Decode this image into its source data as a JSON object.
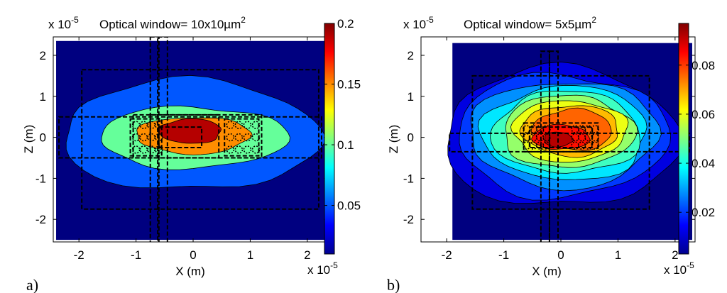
{
  "chart_data": [
    {
      "type": "contour",
      "title": "Optical window= 10x10µm",
      "title_superscript": "2",
      "axis_multiplier": "x 10",
      "axis_multiplier_exp": "-5",
      "xlabel": "X (m)",
      "ylabel": "Z (m)",
      "xlim": [
        -2.45,
        2.35
      ],
      "ylim": [
        -2.55,
        2.45
      ],
      "xticks": [
        -2,
        -1,
        0,
        1,
        2
      ],
      "yticks": [
        -2,
        -1,
        0,
        1,
        2
      ],
      "xtick_labels": [
        "-2",
        "-1",
        "0",
        "1",
        "2"
      ],
      "ytick_labels": [
        "-2",
        "-1",
        "0",
        "1",
        "2"
      ],
      "colorbar": {
        "min": 0.01,
        "max": 0.2,
        "ticks": [
          0.05,
          0.1,
          0.15,
          0.2
        ],
        "tick_labels": [
          "0.05",
          "0.1",
          "0.15",
          "0.2"
        ]
      },
      "panel_label": "a)",
      "fill_region": [
        -2.4,
        2.3,
        -2.5,
        2.35
      ],
      "contours": [
        {
          "level": 0.05,
          "cx": -0.05,
          "cz": 0.05,
          "rx": 2.25,
          "rz": 1.35
        },
        {
          "level": 0.1,
          "cx": 0.0,
          "cz": 0.0,
          "rx": 1.65,
          "rz": 0.75
        },
        {
          "level": 0.15,
          "cx": 0.0,
          "cz": 0.05,
          "rx": 1.0,
          "rz": 0.45
        },
        {
          "level": 0.19,
          "cx": -0.05,
          "cz": 0.15,
          "rx": 0.55,
          "rz": 0.3
        }
      ],
      "dashed_rects": [
        [
          -1.95,
          2.2,
          -1.75,
          1.65
        ],
        [
          -2.35,
          2.25,
          -0.5,
          0.5
        ],
        [
          -0.62,
          -0.45,
          -2.6,
          2.45
        ],
        [
          -0.75,
          -0.6,
          -2.6,
          2.45
        ],
        [
          -1.05,
          1.2,
          -0.5,
          0.55
        ],
        [
          -0.75,
          0.45,
          -0.5,
          0.55
        ],
        [
          -1.1,
          -0.55,
          -0.45,
          0.45
        ],
        [
          0.55,
          1.15,
          -0.45,
          0.45
        ],
        [
          -0.6,
          0.15,
          -0.25,
          0.25
        ]
      ],
      "dot_rows": [
        {
          "x0": -1.0,
          "x1": -0.6,
          "z": 0.3
        },
        {
          "x0": -1.0,
          "x1": -0.6,
          "z": 0.0
        },
        {
          "x0": -1.0,
          "x1": -0.6,
          "z": -0.3
        },
        {
          "x0": 0.65,
          "x1": 1.1,
          "z": 0.3
        },
        {
          "x0": 0.65,
          "x1": 1.1,
          "z": 0.0
        },
        {
          "x0": 0.65,
          "x1": 1.1,
          "z": -0.3
        }
      ]
    },
    {
      "type": "contour",
      "title": "Optical window= 5x5µm",
      "title_superscript": "2",
      "axis_multiplier": "x 10",
      "axis_multiplier_exp": "-5",
      "xlabel": "X (m)",
      "ylabel": "Z (m)",
      "xlim": [
        -2.45,
        2.35
      ],
      "ylim": [
        -2.55,
        2.45
      ],
      "xticks": [
        -2,
        -1,
        0,
        1,
        2
      ],
      "yticks": [
        -2,
        -1,
        0,
        1,
        2
      ],
      "xtick_labels": [
        "-2",
        "-1",
        "0",
        "1",
        "2"
      ],
      "ytick_labels": [
        "-2",
        "-1",
        "0",
        "1",
        "2"
      ],
      "colorbar": {
        "min": 0.003,
        "max": 0.097,
        "ticks": [
          0.02,
          0.04,
          0.06,
          0.08
        ],
        "tick_labels": [
          "0.02",
          "0.04",
          "0.06",
          "0.08"
        ]
      },
      "panel_label": "b)",
      "fill_region": [
        -1.9,
        2.3,
        -2.5,
        2.3
      ],
      "contours": [
        {
          "level": 0.012,
          "cx": 0.0,
          "cz": 0.0,
          "rx": 2.05,
          "rz": 1.7
        },
        {
          "level": 0.02,
          "cx": 0.02,
          "cz": 0.05,
          "rx": 1.85,
          "rz": 1.5
        },
        {
          "level": 0.028,
          "cx": 0.05,
          "cz": 0.08,
          "rx": 1.65,
          "rz": 1.3
        },
        {
          "level": 0.036,
          "cx": 0.08,
          "cz": 0.1,
          "rx": 1.45,
          "rz": 1.15
        },
        {
          "level": 0.044,
          "cx": 0.1,
          "cz": 0.12,
          "rx": 1.3,
          "rz": 1.0
        },
        {
          "level": 0.052,
          "cx": 0.12,
          "cz": 0.14,
          "rx": 1.15,
          "rz": 0.88
        },
        {
          "level": 0.06,
          "cx": 0.15,
          "cz": 0.16,
          "rx": 1.0,
          "rz": 0.75
        },
        {
          "level": 0.068,
          "cx": 0.17,
          "cz": 0.17,
          "rx": 0.85,
          "rz": 0.62
        },
        {
          "level": 0.076,
          "cx": 0.2,
          "cz": 0.18,
          "rx": 0.7,
          "rz": 0.5
        },
        {
          "level": 0.084,
          "cx": 0.0,
          "cz": 0.0,
          "rx": 0.5,
          "rz": 0.3
        },
        {
          "level": 0.092,
          "cx": -0.05,
          "cz": -0.05,
          "rx": 0.25,
          "rz": 0.18
        }
      ],
      "dashed_rects": [
        [
          -1.55,
          1.55,
          -1.75,
          1.5
        ],
        [
          -1.95,
          2.25,
          -0.35,
          0.1
        ],
        [
          -0.35,
          -0.2,
          -2.6,
          2.1
        ],
        [
          -0.2,
          -0.05,
          -2.6,
          2.1
        ],
        [
          -0.65,
          0.65,
          -0.35,
          0.35
        ],
        [
          -0.55,
          0.55,
          -0.25,
          0.25
        ]
      ],
      "dot_rows": [
        {
          "x0": -0.6,
          "x1": -0.25,
          "z": 0.2
        },
        {
          "x0": -0.6,
          "x1": -0.25,
          "z": 0.0
        },
        {
          "x0": -0.6,
          "x1": -0.25,
          "z": -0.2
        },
        {
          "x0": 0.25,
          "x1": 0.6,
          "z": 0.2
        },
        {
          "x0": 0.25,
          "x1": 0.6,
          "z": 0.0
        },
        {
          "x0": 0.25,
          "x1": 0.6,
          "z": -0.2
        }
      ]
    }
  ]
}
